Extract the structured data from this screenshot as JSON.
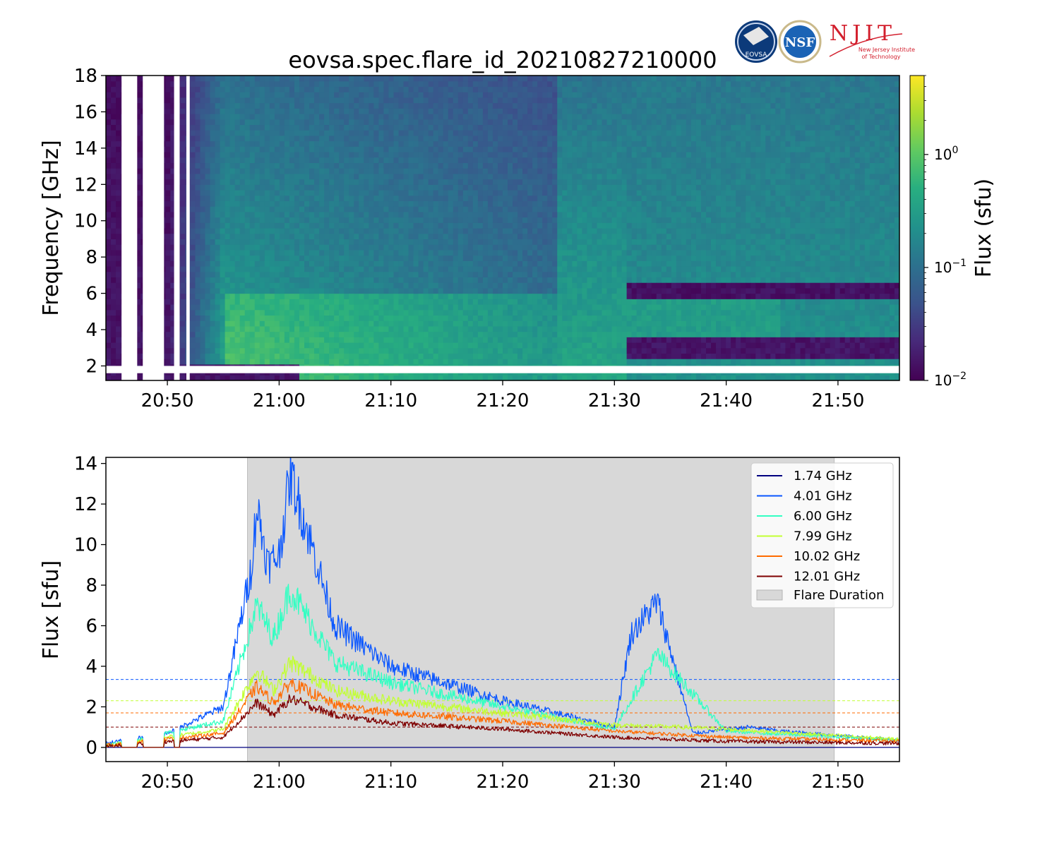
{
  "title": "eovsa.spec.flare_id_20210827210000",
  "logos": {
    "eovsa": "EOVSA",
    "nsf": "NSF",
    "njit": "NJIT",
    "njit_sub1": "New Jersey Institute",
    "njit_sub2": "of Technology"
  },
  "colors": {
    "flare_shade": "#d8d8d8",
    "s174": "#00007f",
    "s401": "#0b57ff",
    "s600": "#34ffc3",
    "s799": "#c2ff33",
    "s1002": "#ff6b00",
    "s1201": "#7f0000"
  },
  "chart_data": [
    {
      "type": "heatmap",
      "title": "eovsa.spec.flare_id_20210827210000",
      "xlabel": "",
      "ylabel": "Frequency [GHz]",
      "x_range": [
        "20:44:30",
        "21:55:30"
      ],
      "ylim": [
        1.2,
        18
      ],
      "x_ticks": [
        "20:50",
        "21:00",
        "21:10",
        "21:20",
        "21:30",
        "21:40",
        "21:50"
      ],
      "y_ticks": [
        2,
        4,
        6,
        8,
        10,
        12,
        14,
        16,
        18
      ],
      "colorbar": {
        "label": "Flux  (sfu)",
        "scale": "log",
        "range": [
          0.01,
          5
        ],
        "ticks": [
          {
            "base": "10",
            "exp": "0",
            "value": 1
          },
          {
            "base": "10",
            "exp": "−1",
            "value": 0.1
          },
          {
            "base": "10",
            "exp": "−2",
            "value": 0.01
          }
        ],
        "colormap": "viridis"
      },
      "features": {
        "burst_peaks_min": [
          13.3,
          16.3
        ],
        "data_gaps_min": [
          [
            45.9,
            47.3
          ],
          [
            47.8,
            49.7
          ],
          [
            50.6,
            51.1
          ],
          [
            51.7,
            52.0
          ]
        ],
        "missing_band_ghz": [
          1.6,
          2.0
        ]
      }
    },
    {
      "type": "line",
      "xlabel": "",
      "ylabel": "Flux [sfu]",
      "x_range": [
        "20:44:30",
        "21:55:30"
      ],
      "ylim": [
        -0.7,
        14.3
      ],
      "x_ticks": [
        "20:50",
        "21:00",
        "21:10",
        "21:20",
        "21:30",
        "21:40",
        "21:50"
      ],
      "y_ticks": [
        0,
        2,
        4,
        6,
        8,
        10,
        12,
        14
      ],
      "flare_duration": [
        "20:57:10",
        "21:49:40"
      ],
      "legend_position": "upper-right",
      "series": [
        {
          "name": "1.74 GHz",
          "color": "#00007f",
          "threshold": null,
          "key_points": [
            [
              "20:44:30",
              0
            ],
            [
              "21:55:30",
              0
            ]
          ]
        },
        {
          "name": "4.01 GHz",
          "color": "#0b57ff",
          "threshold": 3.35,
          "key_points": [
            [
              "20:44:30",
              0.2
            ],
            [
              "20:50:00",
              0.7
            ],
            [
              "20:55:00",
              2.0
            ],
            [
              "20:57:30",
              8.8
            ],
            [
              "20:58:00",
              11.9
            ],
            [
              "20:59:00",
              9.0
            ],
            [
              "21:00:00",
              9.5
            ],
            [
              "21:01:00",
              13.5
            ],
            [
              "21:03:00",
              9.8
            ],
            [
              "21:05:00",
              6.0
            ],
            [
              "21:10:00",
              4.0
            ],
            [
              "21:20:00",
              2.3
            ],
            [
              "21:30:00",
              1.0
            ],
            [
              "21:31:30",
              5.6
            ],
            [
              "21:33:50",
              7.2
            ],
            [
              "21:37:00",
              0.7
            ],
            [
              "21:42:00",
              1.0
            ],
            [
              "21:45:00",
              0.8
            ],
            [
              "21:55:30",
              0.35
            ]
          ]
        },
        {
          "name": "6.00 GHz",
          "color": "#34ffc3",
          "threshold": null,
          "key_points": [
            [
              "20:44:30",
              0.1
            ],
            [
              "20:55:00",
              1.3
            ],
            [
              "20:58:00",
              7.0
            ],
            [
              "20:59:30",
              5.4
            ],
            [
              "21:01:00",
              7.8
            ],
            [
              "21:05:00",
              4.2
            ],
            [
              "21:10:00",
              3.2
            ],
            [
              "21:20:00",
              2.0
            ],
            [
              "21:30:00",
              0.9
            ],
            [
              "21:33:50",
              4.6
            ],
            [
              "21:40:00",
              0.8
            ],
            [
              "21:55:30",
              0.35
            ]
          ]
        },
        {
          "name": "7.99 GHz",
          "color": "#c2ff33",
          "threshold": 2.3,
          "key_points": [
            [
              "20:44:30",
              0.1
            ],
            [
              "20:55:00",
              0.9
            ],
            [
              "20:58:00",
              3.8
            ],
            [
              "20:59:30",
              2.8
            ],
            [
              "21:01:00",
              4.2
            ],
            [
              "21:05:00",
              2.8
            ],
            [
              "21:10:00",
              2.3
            ],
            [
              "21:20:00",
              1.7
            ],
            [
              "21:30:00",
              1.1
            ],
            [
              "21:36:00",
              1.0
            ],
            [
              "21:40:00",
              0.9
            ],
            [
              "21:55:30",
              0.4
            ]
          ]
        },
        {
          "name": "10.02 GHz",
          "color": "#ff6b00",
          "threshold": 1.7,
          "key_points": [
            [
              "20:44:30",
              0.1
            ],
            [
              "20:55:00",
              0.7
            ],
            [
              "20:58:00",
              3.0
            ],
            [
              "20:59:30",
              2.2
            ],
            [
              "21:01:00",
              3.2
            ],
            [
              "21:05:00",
              2.1
            ],
            [
              "21:10:00",
              1.7
            ],
            [
              "21:20:00",
              1.3
            ],
            [
              "21:30:00",
              0.8
            ],
            [
              "21:40:00",
              0.5
            ],
            [
              "21:55:30",
              0.3
            ]
          ]
        },
        {
          "name": "12.01 GHz",
          "color": "#7f0000",
          "threshold": 1.0,
          "key_points": [
            [
              "20:44:30",
              0.05
            ],
            [
              "20:55:00",
              0.5
            ],
            [
              "20:58:00",
              2.2
            ],
            [
              "20:59:30",
              1.6
            ],
            [
              "21:01:00",
              2.4
            ],
            [
              "21:05:00",
              1.6
            ],
            [
              "21:10:00",
              1.2
            ],
            [
              "21:20:00",
              0.9
            ],
            [
              "21:30:00",
              0.5
            ],
            [
              "21:40:00",
              0.3
            ],
            [
              "21:55:30",
              0.2
            ]
          ]
        }
      ],
      "shaded_label": "Flare Duration"
    }
  ]
}
